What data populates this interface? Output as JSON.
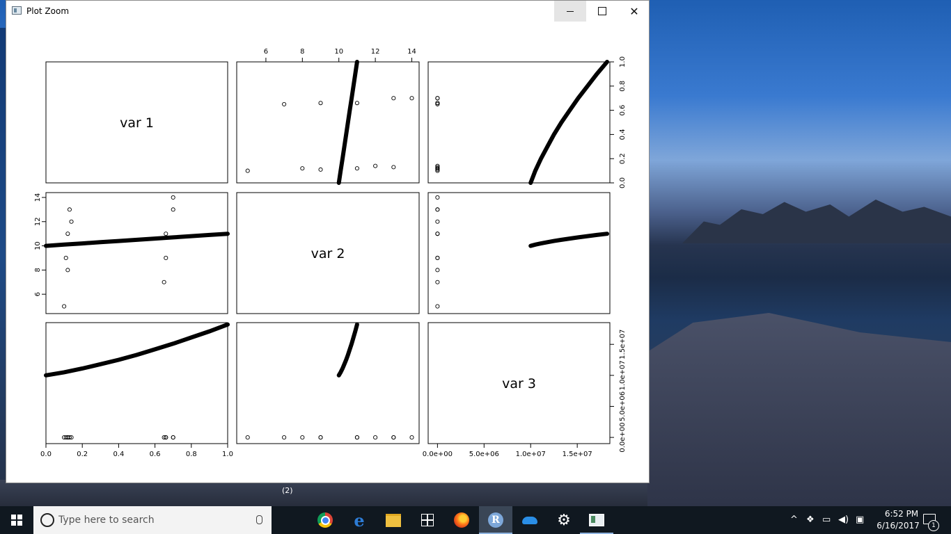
{
  "window": {
    "title": "Plot Zoom",
    "minimize": "—",
    "close": "✕"
  },
  "chart_data": {
    "type": "scatter",
    "subtype": "pairs-scatterplot-matrix",
    "variables": [
      "var 1",
      "var 2",
      "var 3"
    ],
    "axes": {
      "var1": {
        "range": [
          0,
          1
        ],
        "ticks": [
          0.0,
          0.2,
          0.4,
          0.6,
          0.8,
          1.0
        ],
        "tick_labels": [
          "0.0",
          "0.2",
          "0.4",
          "0.6",
          "0.8",
          "1.0"
        ]
      },
      "var2": {
        "range": [
          4.4,
          14.4
        ],
        "ticks": [
          6,
          8,
          10,
          12,
          14
        ],
        "tick_labels": [
          "6",
          "8",
          "10",
          "12",
          "14"
        ]
      },
      "var3": {
        "range": [
          -1000000.0,
          18500000.0
        ],
        "ticks": [
          0,
          5000000.0,
          10000000.0,
          15000000.0
        ],
        "tick_labels": [
          "0.0e+00",
          "5.0e+06",
          "1.0e+07",
          "1.5e+07"
        ]
      }
    },
    "points": {
      "var1": [
        0.1,
        0.12,
        0.13,
        0.14,
        0.11,
        0.12,
        0.65,
        0.66,
        0.7,
        0.7,
        0.66
      ],
      "var2": [
        5,
        8,
        13,
        12,
        9,
        11,
        7,
        9,
        13,
        14,
        11
      ],
      "var3": [
        0,
        0,
        0,
        0,
        0,
        0,
        0,
        0,
        0,
        0,
        0
      ]
    },
    "dense_curve": {
      "description_fields": [
        "var1",
        "var2",
        "var3"
      ],
      "var1_samples": [
        0.0,
        0.1,
        0.2,
        0.3,
        0.4,
        0.5,
        0.6,
        0.7,
        0.8,
        0.9,
        1.0
      ],
      "var2_samples": [
        10.0,
        10.1,
        10.2,
        10.3,
        10.4,
        10.5,
        10.6,
        10.7,
        10.8,
        10.9,
        11.0
      ],
      "var3_samples": [
        10000000.0,
        10500000.0,
        11100000.0,
        11800000.0,
        12500000.0,
        13300000.0,
        14200000.0,
        15100000.0,
        16100000.0,
        17100000.0,
        18200000.0
      ]
    },
    "grid": false,
    "legend": "none"
  },
  "stray_label": "(2)",
  "taskbar": {
    "search_placeholder": "Type here to search",
    "apps": [
      "task-view-icon",
      "chrome-icon",
      "edge-icon",
      "file-explorer-icon",
      "store-icon",
      "firefox-icon",
      "r-icon",
      "onedrive-icon",
      "settings-gear-icon",
      "rstudio-icon"
    ],
    "clock_time": "6:52 PM",
    "clock_date": "6/16/2017",
    "notification_count": "1"
  }
}
